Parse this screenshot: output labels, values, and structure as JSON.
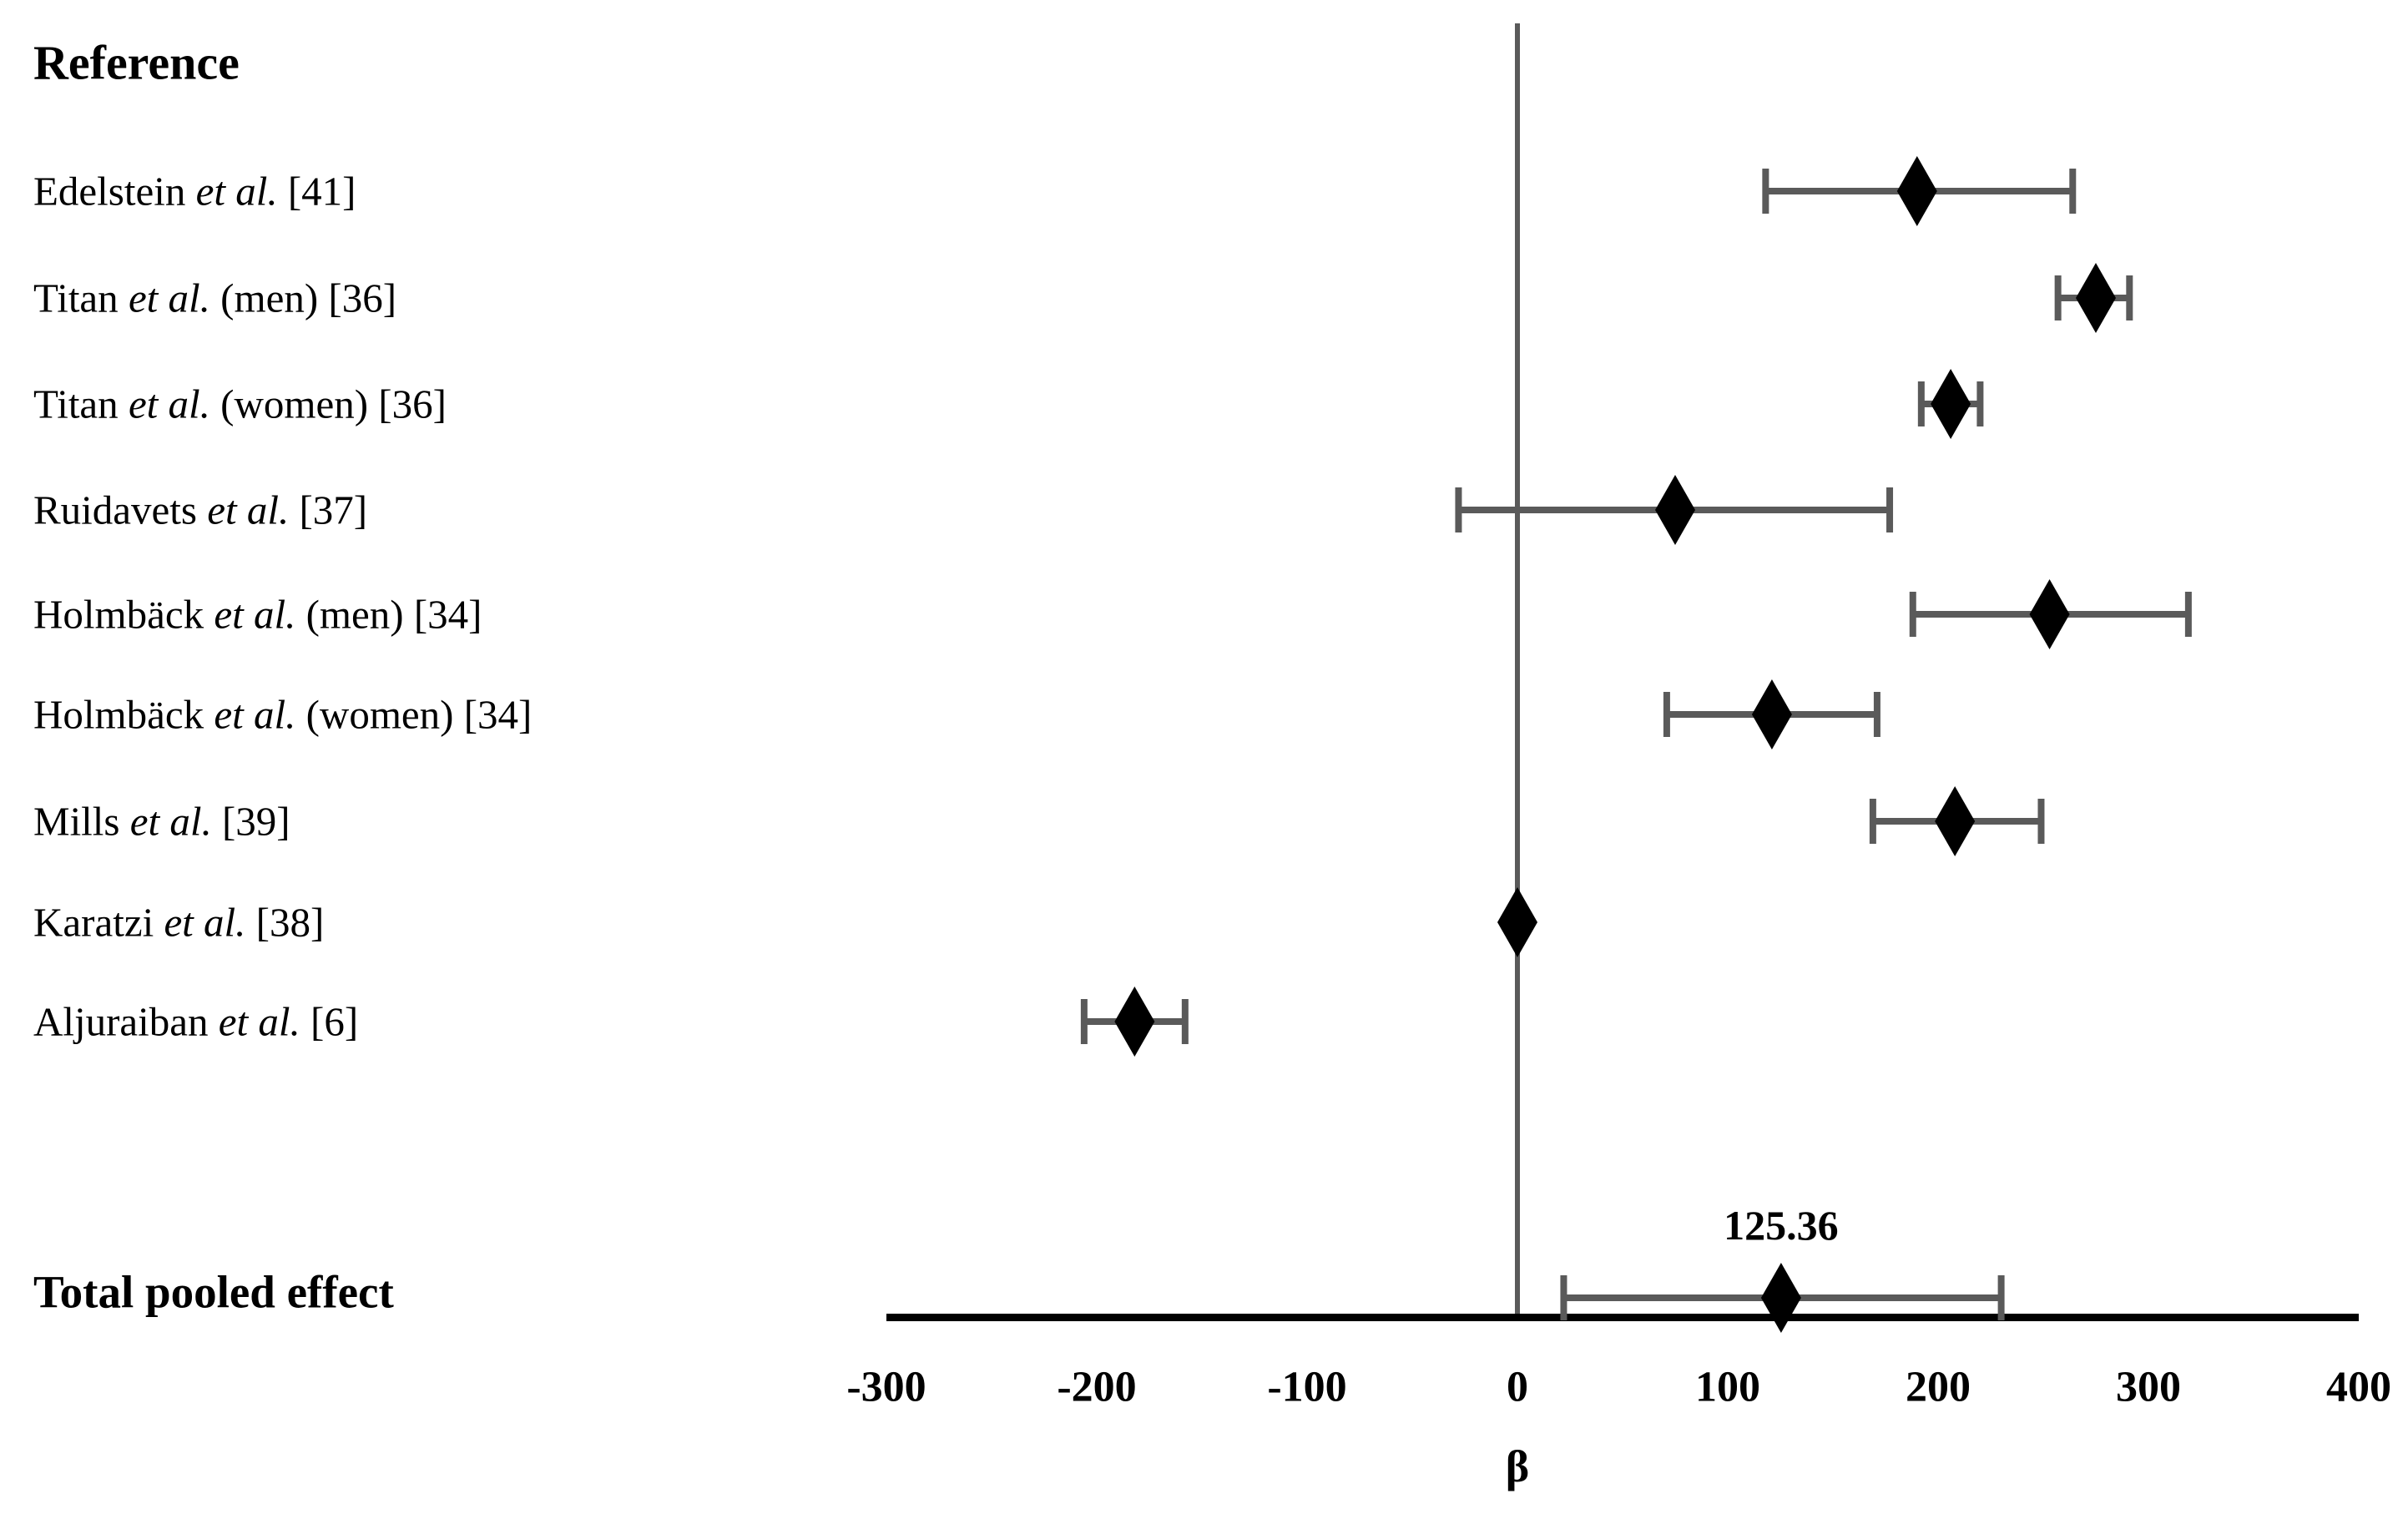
{
  "header": {
    "reference_label": "Reference"
  },
  "colors": {
    "bar": "#5a5a5a",
    "cap": "#5a5a5a",
    "zero_line": "#5a5a5a",
    "axis_line": "#000000",
    "diamond": "#000000",
    "background": "#ffffff"
  },
  "chart_data": {
    "type": "forest",
    "title": "",
    "xlabel": "β",
    "xlim": [
      -300,
      400
    ],
    "x_ticks": [
      -300,
      -200,
      -100,
      0,
      100,
      200,
      300,
      400
    ],
    "x_tick_labels": [
      "-300",
      "-200",
      "-100",
      "0",
      "100",
      "200",
      "300",
      "400"
    ],
    "grid": false,
    "zero_reference_line": 0,
    "marker": "diamond",
    "studies": [
      {
        "label": "Edelstein et al. [41]",
        "label_pre": "Edelstein ",
        "label_italic": "et al.",
        "label_post": " [41]",
        "beta": 190,
        "ci_low": 118,
        "ci_high": 264
      },
      {
        "label": "Titan et al. (men) [36]",
        "label_pre": "Titan ",
        "label_italic": "et al.",
        "label_post": " (men) [36]",
        "beta": 275,
        "ci_low": 257,
        "ci_high": 291
      },
      {
        "label": "Titan et al. (women) [36]",
        "label_pre": "Titan ",
        "label_italic": "et al.",
        "label_post": " (women) [36]",
        "beta": 206,
        "ci_low": 192,
        "ci_high": 220
      },
      {
        "label": "Ruidavets et al. [37]",
        "label_pre": "Ruidavets ",
        "label_italic": "et al.",
        "label_post": " [37]",
        "beta": 75,
        "ci_low": -28,
        "ci_high": 177
      },
      {
        "label": "Holmbäck et al. (men) [34]",
        "label_pre": "Holmbäck ",
        "label_italic": "et al.",
        "label_post": " (men) [34]",
        "beta": 253,
        "ci_low": 188,
        "ci_high": 319
      },
      {
        "label": "Holmbäck et al. (women) [34]",
        "label_pre": "Holmbäck ",
        "label_italic": "et al.",
        "label_post": " (women) [34]",
        "beta": 121,
        "ci_low": 71,
        "ci_high": 171
      },
      {
        "label": "Mills et al. [39]",
        "label_pre": "Mills ",
        "label_italic": "et al.",
        "label_post": " [39]",
        "beta": 208,
        "ci_low": 169,
        "ci_high": 249
      },
      {
        "label": "Karatzi et al. [38]",
        "label_pre": "Karatzi ",
        "label_italic": "et al.",
        "label_post": " [38]",
        "beta": 0,
        "ci_low": null,
        "ci_high": null
      },
      {
        "label": "Aljuraiban et al. [6]",
        "label_pre": "Aljuraiban ",
        "label_italic": "et al.",
        "label_post": " [6]",
        "beta": -182,
        "ci_low": -206,
        "ci_high": -158
      }
    ],
    "pooled": {
      "label": "Total pooled effect",
      "beta": 125.36,
      "ci_low": 22,
      "ci_high": 230,
      "value_label": "125.36"
    }
  }
}
